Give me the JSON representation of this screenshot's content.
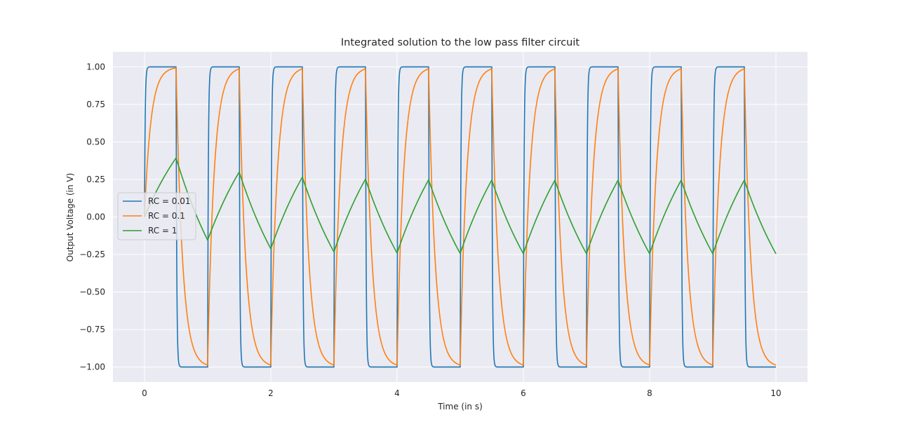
{
  "chart_data": {
    "type": "line",
    "title": "Integrated solution to the low pass filter circuit",
    "xlabel": "Time (in s)",
    "ylabel": "Output Voltage (in V)",
    "xlim": [
      -0.5,
      10.5
    ],
    "ylim": [
      -1.1,
      1.1
    ],
    "xticks": [
      0,
      2,
      4,
      6,
      8,
      10
    ],
    "xtick_labels": [
      "0",
      "2",
      "4",
      "6",
      "8",
      "10"
    ],
    "yticks": [
      -1.0,
      -0.75,
      -0.5,
      -0.25,
      0.0,
      0.25,
      0.5,
      0.75,
      1.0
    ],
    "ytick_labels": [
      "−1.00",
      "−0.75",
      "−0.50",
      "−0.25",
      "0.00",
      "0.25",
      "0.50",
      "0.75",
      "1.00"
    ],
    "grid": true,
    "legend_position": "center-left",
    "background": "#eaeaf2",
    "input_signal": {
      "form": "square wave",
      "amplitude": 1.0,
      "period": 1.0,
      "duty": 0.5,
      "t_start": 0.0,
      "t_end": 10.0
    },
    "series": [
      {
        "name": "RC = 0.01",
        "rc": 0.01,
        "color": "#1f77b4"
      },
      {
        "name": "RC = 0.1",
        "rc": 0.1,
        "color": "#ff7f0e"
      },
      {
        "name": "RC = 1",
        "rc": 1.0,
        "color": "#2ca02c"
      }
    ]
  }
}
